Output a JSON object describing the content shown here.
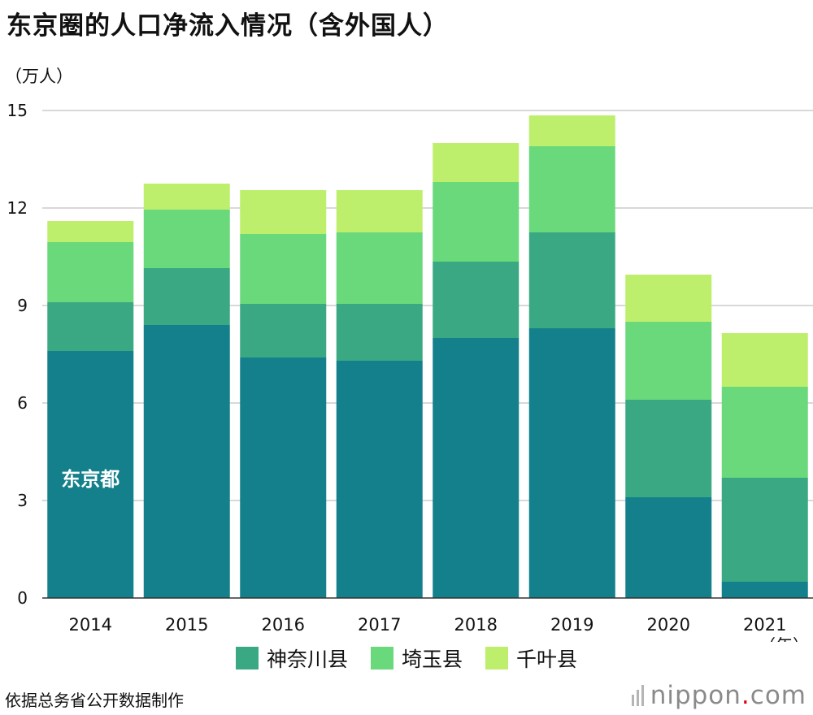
{
  "title": "东京圈的人口净流入情况（含外国人）",
  "unit_label": "（万人）",
  "x_unit_label": "（年）",
  "source": "依据总务省公开数据制作",
  "brand": {
    "name": "nippon",
    "dot": ".",
    "suffix": "com"
  },
  "colors": {
    "tokyo": "#13808C",
    "kanagawa": "#3AA882",
    "saitama": "#6AD97B",
    "chiba": "#BEEF6C",
    "grid": "#cccccc",
    "axis": "#333333"
  },
  "chart_data": {
    "type": "bar",
    "stacked": true,
    "title": "东京圈的人口净流入情况（含外国人）",
    "ylabel": "（万人）",
    "xlabel": "（年）",
    "ylim": [
      0,
      15
    ],
    "yticks": [
      0,
      3,
      6,
      9,
      12,
      15
    ],
    "grid": true,
    "legend_position": "bottom",
    "categories": [
      "2014",
      "2015",
      "2016",
      "2017",
      "2018",
      "2019",
      "2020",
      "2021"
    ],
    "series": [
      {
        "name": "东京都",
        "key": "tokyo",
        "values": [
          7.6,
          8.4,
          7.4,
          7.3,
          8.0,
          8.3,
          3.1,
          0.5
        ]
      },
      {
        "name": "神奈川县",
        "key": "kanagawa",
        "values": [
          1.5,
          1.75,
          1.65,
          1.75,
          2.35,
          2.95,
          3.0,
          3.2
        ]
      },
      {
        "name": "埼玉县",
        "key": "saitama",
        "values": [
          1.85,
          1.8,
          2.15,
          2.2,
          2.45,
          2.65,
          2.4,
          2.8
        ]
      },
      {
        "name": "千叶县",
        "key": "chiba",
        "values": [
          0.65,
          0.8,
          1.35,
          1.3,
          1.2,
          0.95,
          1.45,
          1.65
        ]
      }
    ],
    "inline_label": "东京都"
  }
}
